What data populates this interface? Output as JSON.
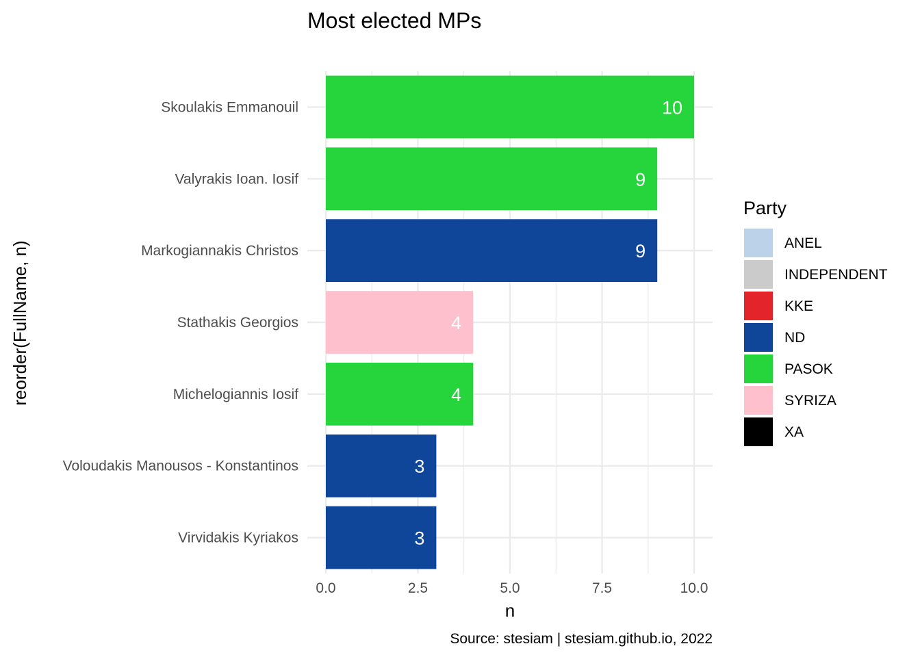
{
  "chart_data": {
    "type": "bar",
    "orientation": "horizontal",
    "title": "Most elected MPs",
    "xlabel": "n",
    "ylabel": "reorder(FullName, n)",
    "caption": "Source: stesiam | stesiam.github.io, 2022",
    "xlim": [
      0,
      10
    ],
    "x_ticks": [
      "0.0",
      "2.5",
      "5.0",
      "7.5",
      "10.0"
    ],
    "grid": true,
    "legend_position": "right",
    "categories": [
      "Skoulakis Emmanouil",
      "Valyrakis Ioan. Iosif",
      "Markogiannakis Christos",
      "Stathakis Georgios",
      "Michelogiannis Iosif",
      "Voloudakis Manousos - Konstantinos",
      "Virvidakis Kyriakos"
    ],
    "values": [
      10,
      9,
      9,
      4,
      4,
      3,
      3
    ],
    "value_labels": [
      "10",
      "9",
      "9",
      "4",
      "4",
      "3",
      "3"
    ],
    "party": [
      "PASOK",
      "PASOK",
      "ND",
      "SYRIZA",
      "PASOK",
      "ND",
      "ND"
    ],
    "legend": {
      "title": "Party",
      "items": [
        {
          "label": "ANEL",
          "color": "#bcd2e8"
        },
        {
          "label": "INDEPENDENT",
          "color": "#cbcbcb"
        },
        {
          "label": "KKE",
          "color": "#e3242b"
        },
        {
          "label": "ND",
          "color": "#0f469a"
        },
        {
          "label": "PASOK",
          "color": "#26d53b"
        },
        {
          "label": "SYRIZA",
          "color": "#ffc0cd"
        },
        {
          "label": "XA",
          "color": "#000000"
        }
      ]
    }
  }
}
